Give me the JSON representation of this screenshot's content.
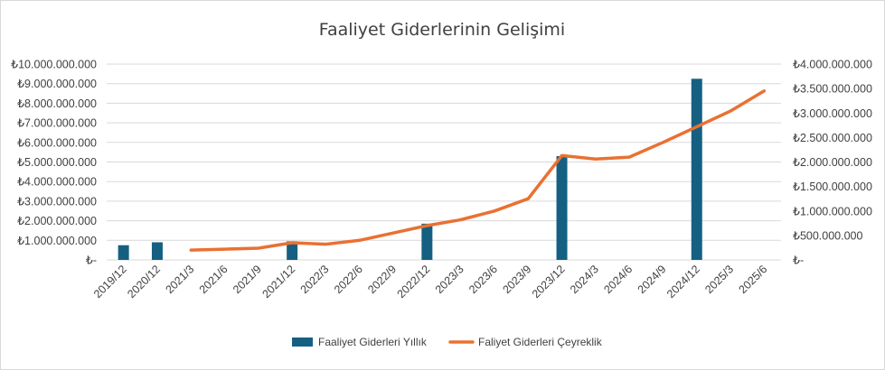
{
  "chart_data": {
    "type": "bar+line",
    "title": "Faaliyet Giderlerinin Gelişimi",
    "categories": [
      "2019/12",
      "2020/12",
      "2021/3",
      "2021/6",
      "2021/9",
      "2021/12",
      "2022/3",
      "2022/6",
      "2022/9",
      "2022/12",
      "2023/3",
      "2023/6",
      "2023/9",
      "2023/12",
      "2024/3",
      "2024/6",
      "2024/9",
      "2024/12",
      "2025/3",
      "2025/6"
    ],
    "series": [
      {
        "name": "Faaliyet Giderleri Yıllık",
        "type": "bar",
        "axis": "left",
        "color": "#156082",
        "values": [
          750000000,
          900000000,
          null,
          null,
          null,
          950000000,
          null,
          null,
          null,
          1850000000,
          null,
          null,
          null,
          5300000000,
          null,
          null,
          null,
          9250000000,
          null,
          null
        ]
      },
      {
        "name": "Faliyet Giderleri Çeyreklik",
        "type": "line",
        "axis": "right",
        "color": "#E97132",
        "values": [
          null,
          null,
          200000000,
          220000000,
          240000000,
          350000000,
          320000000,
          400000000,
          550000000,
          700000000,
          820000000,
          1000000000,
          1250000000,
          2130000000,
          2060000000,
          2100000000,
          2400000000,
          2720000000,
          3040000000,
          3450000000
        ]
      }
    ],
    "y_left": {
      "min": 0,
      "max": 10000000000,
      "ticks": [
        {
          "value": 0,
          "label": "₺-"
        },
        {
          "value": 1000000000,
          "label": "₺1.000.000.000"
        },
        {
          "value": 2000000000,
          "label": "₺2.000.000.000"
        },
        {
          "value": 3000000000,
          "label": "₺3.000.000.000"
        },
        {
          "value": 4000000000,
          "label": "₺4.000.000.000"
        },
        {
          "value": 5000000000,
          "label": "₺5.000.000.000"
        },
        {
          "value": 6000000000,
          "label": "₺6.000.000.000"
        },
        {
          "value": 7000000000,
          "label": "₺7.000.000.000"
        },
        {
          "value": 8000000000,
          "label": "₺8.000.000.000"
        },
        {
          "value": 9000000000,
          "label": "₺9.000.000.000"
        },
        {
          "value": 10000000000,
          "label": "₺10.000.000.000"
        }
      ]
    },
    "y_right": {
      "min": 0,
      "max": 4000000000,
      "ticks": [
        {
          "value": 0,
          "label": "₺-"
        },
        {
          "value": 500000000,
          "label": "₺500.000.000"
        },
        {
          "value": 1000000000,
          "label": "₺1.000.000.000"
        },
        {
          "value": 1500000000,
          "label": "₺1.500.000.000"
        },
        {
          "value": 2000000000,
          "label": "₺2.000.000.000"
        },
        {
          "value": 2500000000,
          "label": "₺2.500.000.000"
        },
        {
          "value": 3000000000,
          "label": "₺3.000.000.000"
        },
        {
          "value": 3500000000,
          "label": "₺3.500.000.000"
        },
        {
          "value": 4000000000,
          "label": "₺4.000.000.000"
        }
      ]
    },
    "grid": true,
    "legend_position": "bottom"
  }
}
